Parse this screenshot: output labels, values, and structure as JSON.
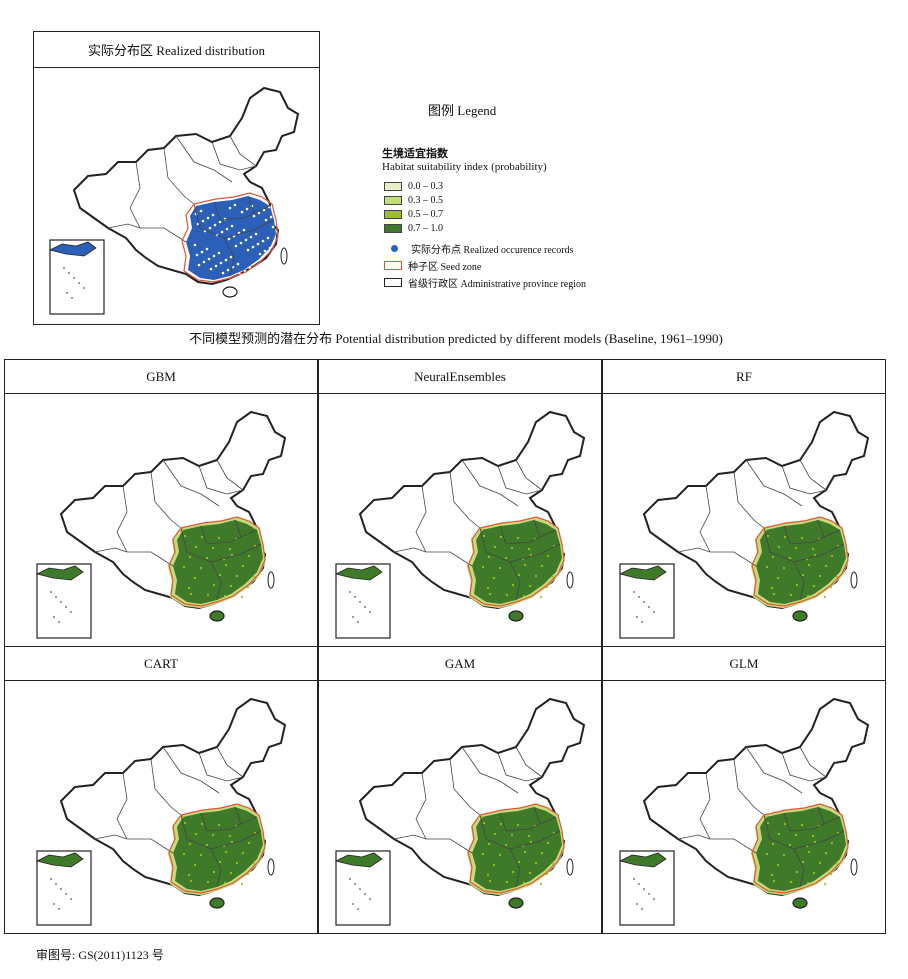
{
  "realized": {
    "title": "实际分布区  Realized distribution"
  },
  "legend": {
    "title": "图例  Legend",
    "heading_cn": "生境适宜指数",
    "heading_en": "Habitat suitability index (probability)",
    "classes": [
      {
        "label": "0.0 – 0.3",
        "color": "#e8f0c8"
      },
      {
        "label": "0.3 – 0.5",
        "color": "#c6dc7a"
      },
      {
        "label": "0.5 – 0.7",
        "color": "#9cc11e"
      },
      {
        "label": "0.7 – 1.0",
        "color": "#3f7a2a"
      }
    ],
    "records_label": "实际分布点  Realized occurence records",
    "records_color": "#2c5fb8",
    "seed_label": "种子区  Seed zone",
    "seed_color": "#e0553a",
    "admin_label": "省级行政区  Administrative province region"
  },
  "section_title": "不同模型预测的潜在分布  Potential distribution predicted by different models (Baseline, 1961–1990)",
  "models": [
    {
      "name": "GBM"
    },
    {
      "name": "NeuralEnsembles"
    },
    {
      "name": "RF"
    },
    {
      "name": "CART"
    },
    {
      "name": "GAM"
    },
    {
      "name": "GLM"
    }
  ],
  "footer": "审图号: GS(2011)1123 号"
}
